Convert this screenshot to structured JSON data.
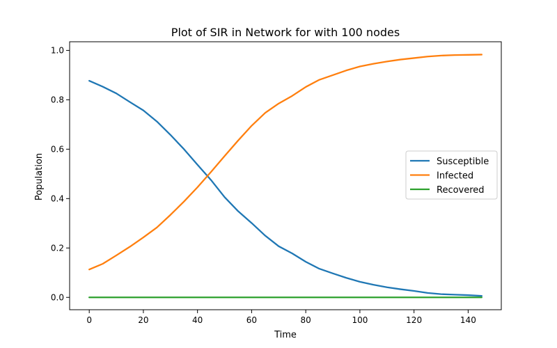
{
  "chart_data": {
    "type": "line",
    "title": "Plot of SIR in Network for with 100 nodes",
    "xlabel": "Time",
    "ylabel": "Population",
    "xlim": [
      -7.25,
      152.25
    ],
    "ylim": [
      -0.05,
      1.035
    ],
    "xticks": [
      0,
      20,
      40,
      60,
      80,
      100,
      120,
      140
    ],
    "yticks": [
      0.0,
      0.2,
      0.4,
      0.6,
      0.8,
      1.0
    ],
    "xtick_labels": [
      "0",
      "20",
      "40",
      "60",
      "80",
      "100",
      "120",
      "140"
    ],
    "ytick_labels": [
      "0.0",
      "0.2",
      "0.4",
      "0.6",
      "0.8",
      "1.0"
    ],
    "grid": false,
    "legend_position": "center-right",
    "x": [
      0,
      5,
      10,
      15,
      20,
      25,
      30,
      35,
      40,
      45,
      50,
      55,
      60,
      65,
      70,
      75,
      80,
      85,
      90,
      95,
      100,
      105,
      110,
      115,
      120,
      125,
      130,
      135,
      140,
      145
    ],
    "series": [
      {
        "name": "Susceptible",
        "color": "#1f77b4",
        "values": [
          0.877,
          0.853,
          0.826,
          0.791,
          0.757,
          0.712,
          0.658,
          0.6,
          0.537,
          0.475,
          0.406,
          0.349,
          0.301,
          0.25,
          0.207,
          0.178,
          0.144,
          0.116,
          0.097,
          0.079,
          0.063,
          0.051,
          0.041,
          0.033,
          0.026,
          0.018,
          0.013,
          0.011,
          0.009,
          0.006
        ]
      },
      {
        "name": "Infected",
        "color": "#ff7f0e",
        "values": [
          0.113,
          0.136,
          0.17,
          0.205,
          0.243,
          0.283,
          0.334,
          0.388,
          0.446,
          0.508,
          0.572,
          0.635,
          0.695,
          0.747,
          0.785,
          0.816,
          0.852,
          0.881,
          0.9,
          0.919,
          0.935,
          0.946,
          0.955,
          0.963,
          0.969,
          0.975,
          0.979,
          0.981,
          0.982,
          0.983
        ]
      },
      {
        "name": "Recovered",
        "color": "#2ca02c",
        "values": [
          0,
          0,
          0,
          0,
          0,
          0,
          0,
          0,
          0,
          0,
          0,
          0,
          0,
          0,
          0,
          0,
          0,
          0,
          0,
          0,
          0,
          0,
          0,
          0,
          0,
          0,
          0,
          0,
          0,
          0
        ]
      }
    ]
  }
}
